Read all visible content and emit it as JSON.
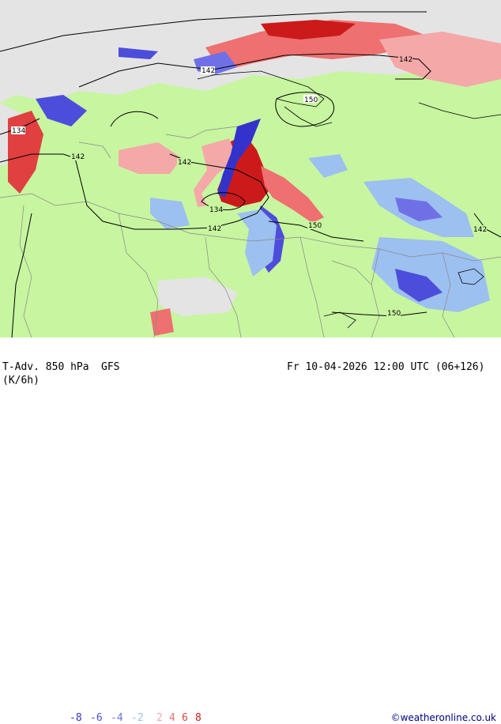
{
  "footer": {
    "title": "T-Adv. 850 hPa",
    "model": "GFS",
    "units": "(K/6h)",
    "datetime": "Fr 10-04-2026 12:00 UTC (06+126)",
    "credit": "©weatheronline.co.uk"
  },
  "legend": [
    {
      "label": "-8",
      "color": "#3333cc"
    },
    {
      "label": "-6",
      "color": "#4d4ddb"
    },
    {
      "label": "-4",
      "color": "#7070e6"
    },
    {
      "label": "-2",
      "color": "#9cc0f0"
    },
    {
      "label": "2",
      "color": "#f4a8a8"
    },
    {
      "label": "4",
      "color": "#ee7070"
    },
    {
      "label": "6",
      "color": "#e04040"
    },
    {
      "label": "8",
      "color": "#cc1a1a"
    }
  ],
  "contour_labels": [
    "142",
    "142",
    "150",
    "134",
    "142",
    "142",
    "134",
    "142",
    "150",
    "142",
    "150"
  ],
  "colors": {
    "land": "#c8f5a0",
    "sea_ice": "#e4e4e4",
    "border": "#888888",
    "isoline": "#000000"
  }
}
